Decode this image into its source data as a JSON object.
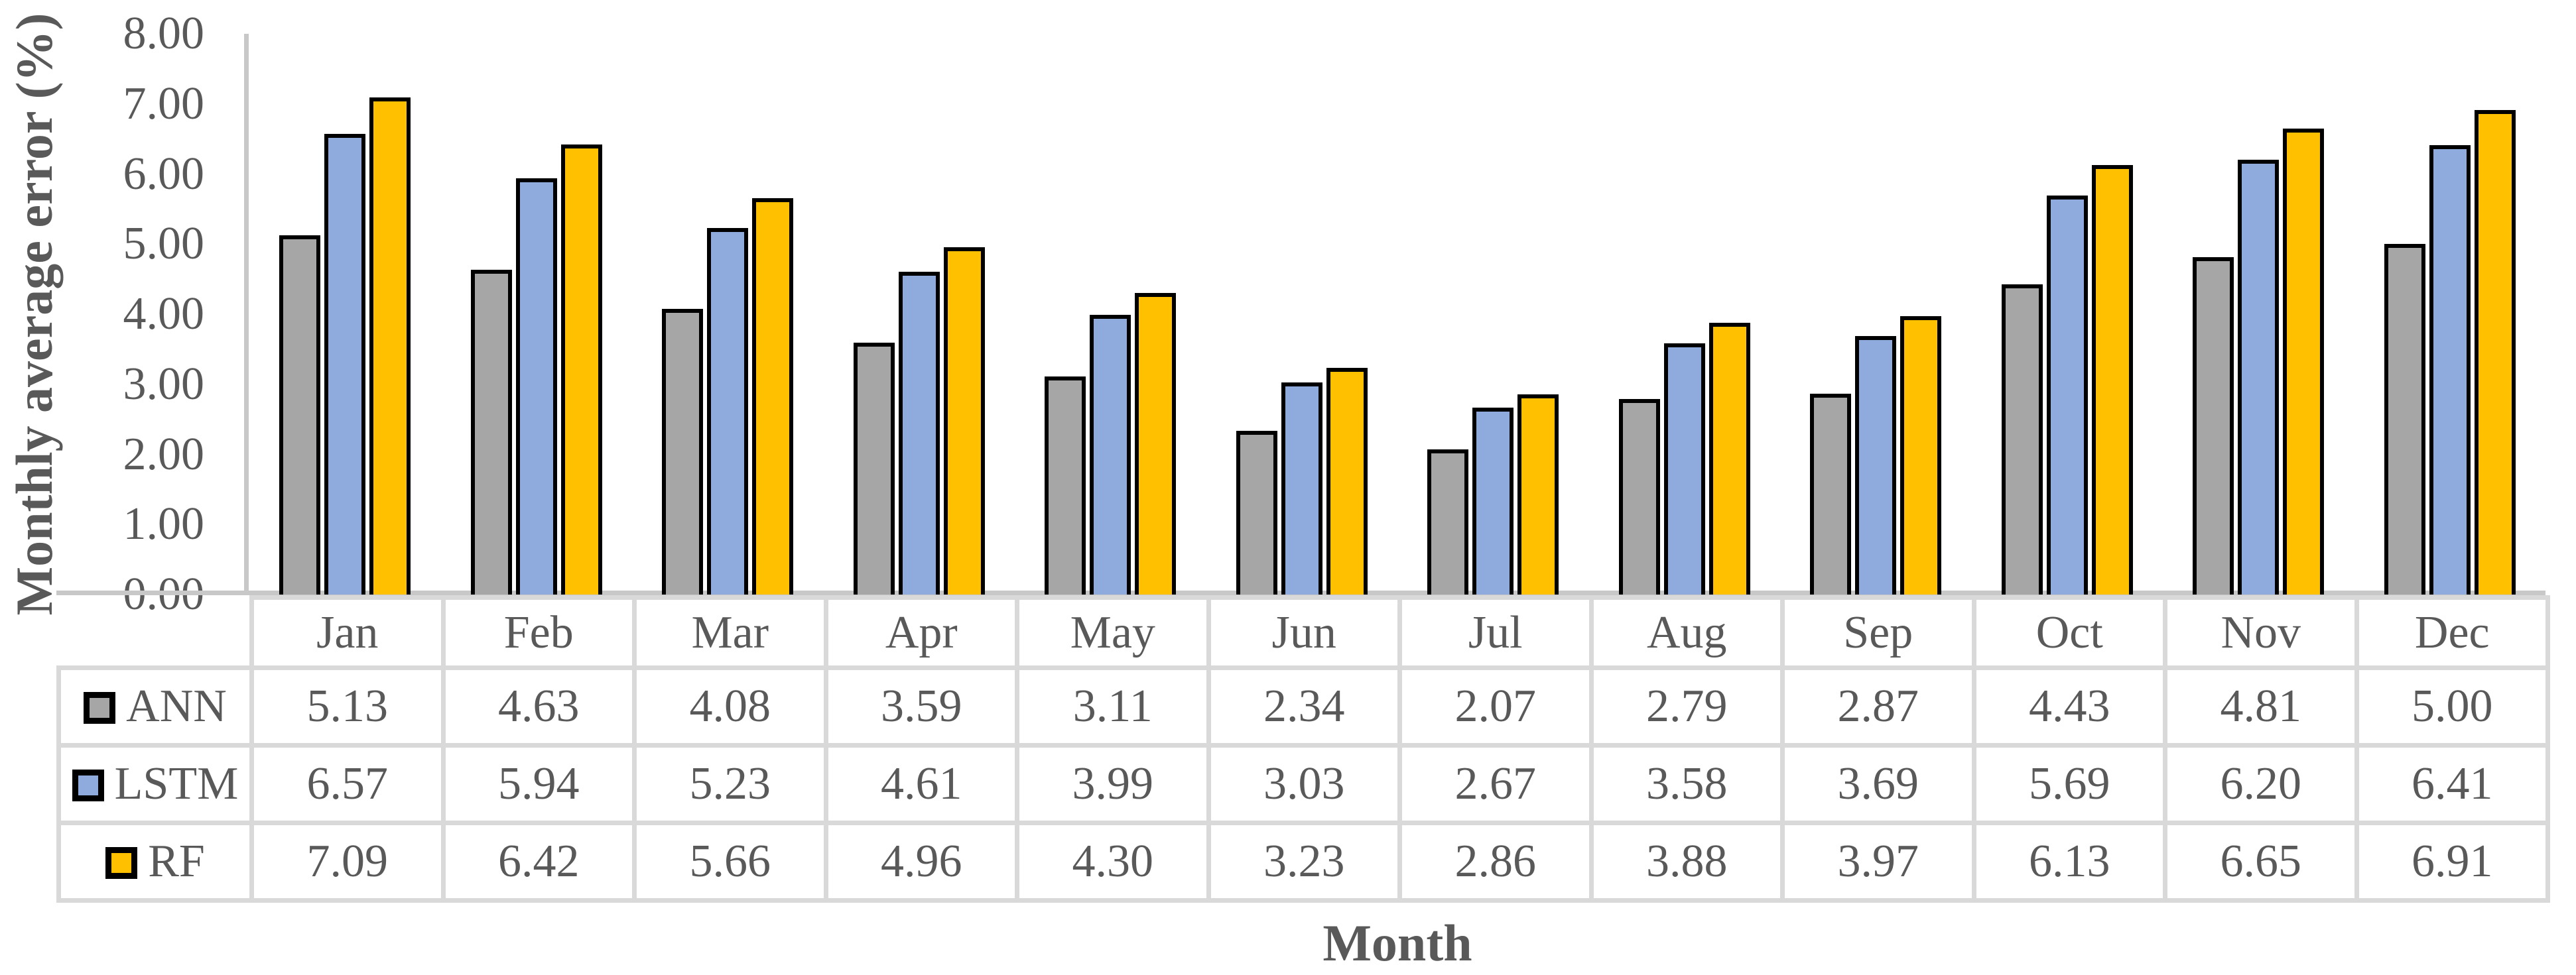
{
  "figure_title": "",
  "chart_data": {
    "type": "bar",
    "title": "",
    "categories": [
      "Jan",
      "Feb",
      "Mar",
      "Apr",
      "May",
      "Jun",
      "Jul",
      "Aug",
      "Sep",
      "Oct",
      "Nov",
      "Dec"
    ],
    "series": [
      {
        "name": "ANN",
        "color": "#A6A6A6",
        "values": [
          5.13,
          4.63,
          4.08,
          3.59,
          3.11,
          2.34,
          2.07,
          2.79,
          2.87,
          4.43,
          4.81,
          5.0
        ]
      },
      {
        "name": "LSTM",
        "color": "#8FAADC",
        "values": [
          6.57,
          5.94,
          5.23,
          4.61,
          3.99,
          3.03,
          2.67,
          3.58,
          3.69,
          5.69,
          6.2,
          6.41
        ]
      },
      {
        "name": "RF",
        "color": "#FFC000",
        "values": [
          7.09,
          6.42,
          5.66,
          4.96,
          4.3,
          3.23,
          2.86,
          3.88,
          3.97,
          6.13,
          6.65,
          6.91
        ]
      }
    ],
    "xlabel": "Month",
    "ylabel": "Monthly average error (%)",
    "ylim": [
      0,
      8
    ],
    "yticks": [
      "8.00",
      "7.00",
      "6.00",
      "5.00",
      "4.00",
      "3.00",
      "2.00",
      "1.00",
      "0.00"
    ],
    "value_format_decimals": 2,
    "grid": false,
    "legend_position": "data-table-left-keys",
    "bar_border_color": "#000000",
    "styles": {
      "text_color": "#595959",
      "table_border_color": "#D9D9D9",
      "axis_line_color": "#C8C8C8",
      "background": "#FFFFFF"
    }
  }
}
